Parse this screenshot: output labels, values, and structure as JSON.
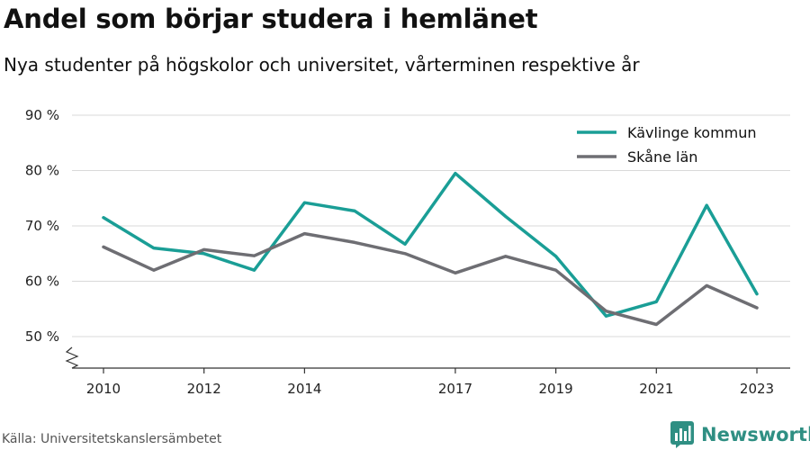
{
  "title": "Andel som börjar studera i hemlänet",
  "subtitle": "Nya studenter på högskolor och universitet, vårterminen respektive år",
  "source": "Källa: Universitetskanslersämbetet",
  "brand": "Newsworthy",
  "colors": {
    "kavlinge": "#1a9e96",
    "skane": "#6e6e73",
    "grid": "#d9d9d9",
    "brand": "#2f8f83"
  },
  "icons": {
    "brand_logo": "bar-chart-icon",
    "axis_break": "zigzag-break-icon"
  },
  "chart_data": {
    "type": "line",
    "x": [
      2010,
      2011,
      2012,
      2013,
      2014,
      2015,
      2016,
      2017,
      2018,
      2019,
      2020,
      2021,
      2022,
      2023
    ],
    "x_tick_values": [
      2010,
      2012,
      2014,
      2017,
      2019,
      2021,
      2023
    ],
    "x_tick_labels": [
      "2010",
      "2012",
      "2014",
      "2017",
      "2019",
      "2021",
      "2023"
    ],
    "y_tick_values": [
      50,
      60,
      70,
      80,
      90
    ],
    "y_tick_labels": [
      "50 %",
      "60 %",
      "70 %",
      "80 %",
      "90 %"
    ],
    "ylim": [
      50,
      90
    ],
    "xlim": [
      2010,
      2023
    ],
    "grid": true,
    "legend_position": "top-right",
    "series": [
      {
        "name": "Kävlinge kommun",
        "color": "#1a9e96",
        "values": [
          71.5,
          66,
          65,
          62,
          74.2,
          72.7,
          66.7,
          79.5,
          71.7,
          64.5,
          53.7,
          56.3,
          73.7,
          57.7
        ]
      },
      {
        "name": "Skåne län",
        "color": "#6e6e73",
        "values": [
          66.2,
          62,
          65.7,
          64.6,
          68.6,
          67,
          65,
          61.5,
          64.5,
          62,
          54.6,
          52.2,
          59.2,
          55.2
        ]
      }
    ]
  }
}
